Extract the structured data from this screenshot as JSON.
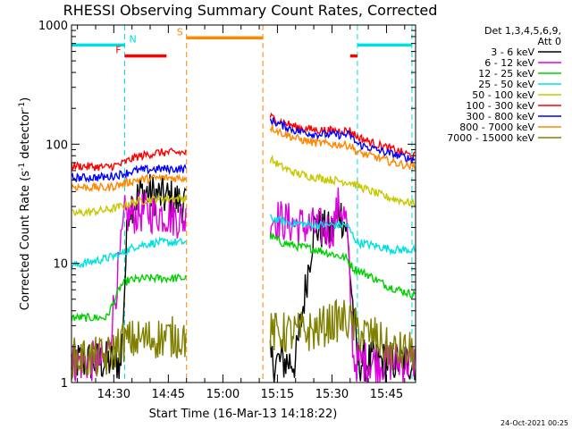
{
  "chart_data": {
    "type": "line",
    "title": "RHESSI Observing Summary Count Rates, Corrected",
    "xlabel": "Start Time (16-Mar-13 14:18:22)",
    "ylabel_main": "Corrected Count Rate (s",
    "ylabel_sup1": "-1",
    "ylabel_mid": " detector",
    "ylabel_sup2": "-1",
    "ylabel_end": ")",
    "ylabel": "Corrected Count Rate (s-1 detector-1)",
    "yscale": "log",
    "ylim": [
      1,
      1000
    ],
    "xlim": [
      "14:18:22",
      "15:53:00"
    ],
    "x_ticks": [
      "14:30",
      "14:45",
      "15:00",
      "15:15",
      "15:30",
      "15:45"
    ],
    "y_ticks": [
      "1",
      "10",
      "100",
      "1000"
    ],
    "legend": {
      "placement": "right",
      "header": [
        "Det 1,3,4,5,6,9,",
        "Att 0"
      ]
    },
    "data_gaps": [
      [
        "14:50:00",
        "15:13:00"
      ]
    ],
    "series": [
      {
        "name": "3 - 6 keV",
        "color": "#000000",
        "x": [
          "14:18:22",
          "14:28",
          "14:32",
          "14:34",
          "14:38",
          "14:42",
          "14:45",
          "14:48",
          "14:50",
          "15:13",
          "15:16",
          "15:20",
          "15:25",
          "15:30",
          "15:32",
          "15:34",
          "15:37",
          "15:40",
          "15:45",
          "15:52"
        ],
        "y": [
          1.5,
          1.5,
          1.5,
          30,
          40,
          37,
          35,
          33,
          32,
          1.5,
          1.5,
          1.5,
          20,
          18,
          28,
          20,
          1.5,
          1.5,
          1.5,
          1.5
        ]
      },
      {
        "name": "6 - 12 keV",
        "color": "#e000e0",
        "x": [
          "14:18:22",
          "14:28",
          "14:32",
          "14:33",
          "14:38",
          "14:44",
          "14:50",
          "15:13",
          "15:16",
          "15:20",
          "15:25",
          "15:30",
          "15:32",
          "15:34",
          "15:36",
          "15:40",
          "15:45",
          "15:52"
        ],
        "y": [
          1.5,
          1.5,
          13,
          25,
          27,
          26,
          23,
          25,
          23,
          21,
          20,
          19,
          32,
          22,
          1.5,
          1.5,
          1.5,
          1.5
        ]
      },
      {
        "name": "12 - 25 keV",
        "color": "#00d000",
        "x": [
          "14:18:22",
          "14:28",
          "14:32",
          "14:34",
          "14:40",
          "14:50",
          "15:13",
          "15:16",
          "15:20",
          "15:26",
          "15:30",
          "15:34",
          "15:36",
          "15:40",
          "15:45",
          "15:52"
        ],
        "y": [
          3.5,
          3.5,
          6.5,
          7.2,
          7.5,
          7.5,
          17,
          15,
          14,
          13,
          12,
          11,
          9,
          8,
          6.5,
          5.5
        ]
      },
      {
        "name": "25 - 50 keV",
        "color": "#00e0e0",
        "x": [
          "14:18:22",
          "14:28",
          "14:32",
          "14:36",
          "14:42",
          "14:50",
          "15:13",
          "15:18",
          "15:25",
          "15:30",
          "15:34",
          "15:37",
          "15:42",
          "15:47",
          "15:52"
        ],
        "y": [
          9.5,
          11,
          12,
          14,
          15,
          15,
          24,
          22,
          21,
          21,
          21,
          15,
          14,
          13,
          13
        ]
      },
      {
        "name": "50 - 100 keV",
        "color": "#c8c800",
        "x": [
          "14:18:22",
          "14:28",
          "14:32",
          "14:36",
          "14:42",
          "14:50",
          "15:13",
          "15:16",
          "15:20",
          "15:25",
          "15:30",
          "15:35",
          "15:40",
          "15:45",
          "15:52"
        ],
        "y": [
          26,
          28,
          30,
          33,
          35,
          35,
          75,
          65,
          57,
          53,
          50,
          48,
          41,
          36,
          32
        ]
      },
      {
        "name": "100 - 300 keV",
        "color": "#ff0000",
        "x": [
          "14:18:22",
          "14:28",
          "14:32",
          "14:36",
          "14:42",
          "14:50",
          "15:13",
          "15:16",
          "15:20",
          "15:25",
          "15:30",
          "15:35",
          "15:37",
          "15:42",
          "15:47",
          "15:52"
        ],
        "y": [
          66,
          64,
          68,
          78,
          85,
          85,
          170,
          155,
          140,
          132,
          130,
          130,
          115,
          100,
          90,
          80
        ]
      },
      {
        "name": "300 - 800 keV",
        "color": "#0000ff",
        "x": [
          "14:18:22",
          "14:28",
          "14:32",
          "14:36",
          "14:42",
          "14:50",
          "15:13",
          "15:16",
          "15:20",
          "15:25",
          "15:30",
          "15:35",
          "15:37",
          "15:42",
          "15:47",
          "15:52"
        ],
        "y": [
          52,
          53,
          56,
          60,
          62,
          62,
          160,
          145,
          130,
          122,
          120,
          120,
          100,
          90,
          82,
          75
        ]
      },
      {
        "name": "800 - 7000 keV",
        "color": "#ff8800",
        "x": [
          "14:18:22",
          "14:28",
          "14:32",
          "14:36",
          "14:42",
          "14:50",
          "15:13",
          "15:16",
          "15:20",
          "15:25",
          "15:30",
          "15:35",
          "15:37",
          "15:42",
          "15:47",
          "15:52"
        ],
        "y": [
          44,
          43,
          46,
          50,
          52,
          52,
          140,
          125,
          112,
          103,
          100,
          98,
          85,
          78,
          70,
          65
        ]
      },
      {
        "name": "7000 - 15000 keV",
        "color": "#808000",
        "x": [
          "14:18:22",
          "14:28",
          "14:32",
          "14:38",
          "14:44",
          "14:50",
          "15:13",
          "15:18",
          "15:25",
          "15:30",
          "15:34",
          "15:38",
          "15:42",
          "15:46",
          "15:52"
        ],
        "y": [
          1.6,
          1.6,
          2.2,
          2.3,
          2.4,
          2.4,
          2.6,
          2.6,
          2.7,
          3.2,
          3.4,
          2.6,
          2.4,
          1.8,
          1.8
        ]
      }
    ],
    "flags": [
      {
        "label": "N",
        "color": "#00e0e0",
        "x_start": "14:18:22",
        "x_end": "14:33:00",
        "level": 680,
        "boundaries": [
          "14:33:00"
        ]
      },
      {
        "label": "",
        "color": "#00e0e0",
        "x_start": "15:37:00",
        "x_end": "15:52:00",
        "level": 680,
        "boundaries": [
          "15:37:00",
          "15:52:00"
        ]
      },
      {
        "label": "F",
        "color": "#ff0000",
        "x_start": "14:33:00",
        "x_end": "14:44:30",
        "level": 550,
        "boundaries": []
      },
      {
        "label": "",
        "color": "#ff0000",
        "x_start": "15:35:00",
        "x_end": "15:37:00",
        "level": 550,
        "boundaries": []
      },
      {
        "label": "S",
        "color": "#ff8800",
        "x_start": "14:50:00",
        "x_end": "15:11:00",
        "level": 780,
        "boundaries": [
          "14:50:00",
          "15:11:00"
        ]
      }
    ]
  },
  "footer": {
    "timestamp": "24-Oct-2021 00:25"
  }
}
